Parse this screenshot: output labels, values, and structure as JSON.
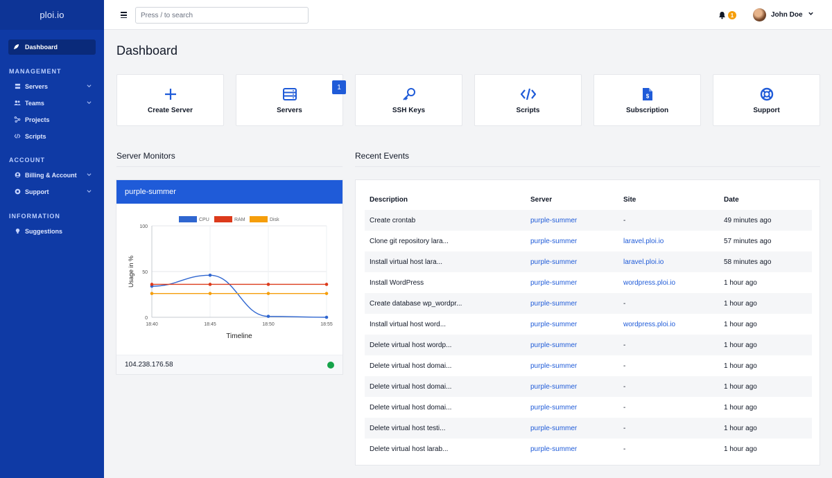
{
  "sidebar": {
    "brand": "ploi.io",
    "active": {
      "label": "Dashboard",
      "icon": "rocket-icon"
    },
    "sections": [
      {
        "title": "MANAGEMENT",
        "items": [
          {
            "label": "Servers",
            "icon": "server-icon",
            "chevron": true
          },
          {
            "label": "Teams",
            "icon": "users-icon",
            "chevron": true
          },
          {
            "label": "Projects",
            "icon": "project-icon",
            "chevron": false
          },
          {
            "label": "Scripts",
            "icon": "code-icon",
            "chevron": false
          }
        ]
      },
      {
        "title": "ACCOUNT",
        "items": [
          {
            "label": "Billing & Account",
            "icon": "user-circle-icon",
            "chevron": true
          },
          {
            "label": "Support",
            "icon": "support-icon",
            "chevron": true
          }
        ]
      },
      {
        "title": "INFORMATION",
        "items": [
          {
            "label": "Suggestions",
            "icon": "lightbulb-icon",
            "chevron": false
          }
        ]
      }
    ]
  },
  "topbar": {
    "search_placeholder": "Press / to search",
    "notifications": "1",
    "user_name": "John Doe"
  },
  "main": {
    "title": "Dashboard",
    "cards": [
      {
        "label": "Create Server",
        "icon": "plus-icon"
      },
      {
        "label": "Servers",
        "icon": "server-stack-icon",
        "badge": "1"
      },
      {
        "label": "SSH Keys",
        "icon": "key-icon"
      },
      {
        "label": "Scripts",
        "icon": "code-icon"
      },
      {
        "label": "Subscription",
        "icon": "invoice-icon"
      },
      {
        "label": "Support",
        "icon": "lifebuoy-icon"
      }
    ],
    "monitors_title": "Server Monitors",
    "events_title": "Recent Events"
  },
  "monitor": {
    "server_name": "purple-summer",
    "ip": "104.238.176.58",
    "status_color": "#16a34a"
  },
  "chart_data": {
    "type": "line",
    "x": [
      "18:40",
      "18:45",
      "18:50",
      "18:55"
    ],
    "xlabel": "Timeline",
    "ylabel": "Usage in %",
    "ylim": [
      0,
      100
    ],
    "yticks": [
      0,
      50,
      100
    ],
    "grid": true,
    "legend": "top",
    "series": [
      {
        "name": "CPU",
        "color": "#2f66d0",
        "values": [
          34,
          46,
          1,
          0
        ]
      },
      {
        "name": "RAM",
        "color": "#dc3a1b",
        "values": [
          36,
          36,
          36,
          36
        ]
      },
      {
        "name": "Disk",
        "color": "#f59e0b",
        "values": [
          26,
          26,
          26,
          26
        ]
      }
    ]
  },
  "events": {
    "columns": [
      "Description",
      "Server",
      "Site",
      "Date"
    ],
    "rows": [
      [
        "Create crontab",
        "purple-summer",
        "-",
        "49 minutes ago"
      ],
      [
        "Clone git repository lara...",
        "purple-summer",
        "laravel.ploi.io",
        "57 minutes ago"
      ],
      [
        "Install virtual host lara...",
        "purple-summer",
        "laravel.ploi.io",
        "58 minutes ago"
      ],
      [
        "Install WordPress",
        "purple-summer",
        "wordpress.ploi.io",
        "1 hour ago"
      ],
      [
        "Create database wp_wordpr...",
        "purple-summer",
        "-",
        "1 hour ago"
      ],
      [
        "Install virtual host word...",
        "purple-summer",
        "wordpress.ploi.io",
        "1 hour ago"
      ],
      [
        "Delete virtual host wordp...",
        "purple-summer",
        "-",
        "1 hour ago"
      ],
      [
        "Delete virtual host domai...",
        "purple-summer",
        "-",
        "1 hour ago"
      ],
      [
        "Delete virtual host domai...",
        "purple-summer",
        "-",
        "1 hour ago"
      ],
      [
        "Delete virtual host domai...",
        "purple-summer",
        "-",
        "1 hour ago"
      ],
      [
        "Delete virtual host testi...",
        "purple-summer",
        "-",
        "1 hour ago"
      ],
      [
        "Delete virtual host larab...",
        "purple-summer",
        "-",
        "1 hour ago"
      ]
    ]
  }
}
